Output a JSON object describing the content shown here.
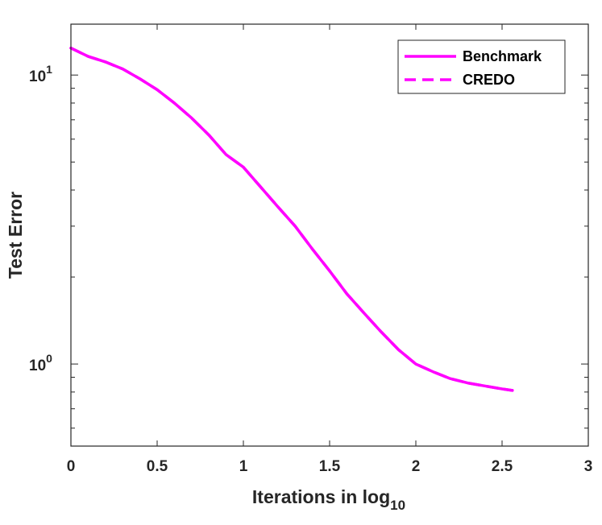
{
  "colors": {
    "series": "#ff00ff",
    "axis": "#262626",
    "background": "#ffffff"
  },
  "chart_data": {
    "type": "line",
    "title": "",
    "xlabel": "Iterations in log",
    "xlabel_subscript": "10",
    "ylabel": "Test Error",
    "xlim": [
      0,
      3
    ],
    "ylim": [
      0.52,
      15
    ],
    "yscale": "log",
    "xticks": [
      {
        "value": 0,
        "label": "0"
      },
      {
        "value": 0.5,
        "label": "0.5"
      },
      {
        "value": 1,
        "label": "1"
      },
      {
        "value": 1.5,
        "label": "1.5"
      },
      {
        "value": 2,
        "label": "2"
      },
      {
        "value": 2.5,
        "label": "2.5"
      },
      {
        "value": 3,
        "label": "3"
      }
    ],
    "yticks_major": [
      {
        "value": 1,
        "base": "10",
        "exp": "0"
      },
      {
        "value": 10,
        "base": "10",
        "exp": "1"
      }
    ],
    "yticks_minor": [
      0.6,
      0.7,
      0.8,
      0.9,
      2,
      3,
      4,
      5,
      6,
      7,
      8,
      9
    ],
    "legend_position": "top-right",
    "series": [
      {
        "name": "Benchmark",
        "style": "solid",
        "x": [
          0,
          0.1,
          0.2,
          0.3,
          0.4,
          0.5,
          0.6,
          0.7,
          0.8,
          0.9,
          1.0,
          1.1,
          1.2,
          1.3,
          1.4,
          1.5,
          1.6,
          1.7,
          1.8,
          1.9,
          2.0,
          2.1,
          2.2,
          2.3,
          2.4,
          2.5,
          2.56
        ],
        "values": [
          12.4,
          11.6,
          11.1,
          10.5,
          9.7,
          8.9,
          8.0,
          7.1,
          6.2,
          5.3,
          4.8,
          4.1,
          3.5,
          3.0,
          2.5,
          2.1,
          1.75,
          1.5,
          1.29,
          1.12,
          1.0,
          0.94,
          0.89,
          0.86,
          0.84,
          0.82,
          0.81
        ]
      },
      {
        "name": "CREDO",
        "style": "dashed",
        "x": [
          0,
          0.1,
          0.2,
          0.3,
          0.4,
          0.5,
          0.6,
          0.7,
          0.8,
          0.9,
          1.0,
          1.1,
          1.2,
          1.3,
          1.4,
          1.5,
          1.6,
          1.7,
          1.8,
          1.9,
          2.0,
          2.1,
          2.2,
          2.3,
          2.4,
          2.5,
          2.56
        ],
        "values": [
          12.4,
          11.6,
          11.1,
          10.5,
          9.7,
          8.9,
          8.0,
          7.1,
          6.2,
          5.3,
          4.8,
          4.1,
          3.5,
          3.0,
          2.5,
          2.1,
          1.75,
          1.5,
          1.29,
          1.12,
          1.0,
          0.94,
          0.89,
          0.86,
          0.84,
          0.82,
          0.81
        ]
      }
    ]
  }
}
